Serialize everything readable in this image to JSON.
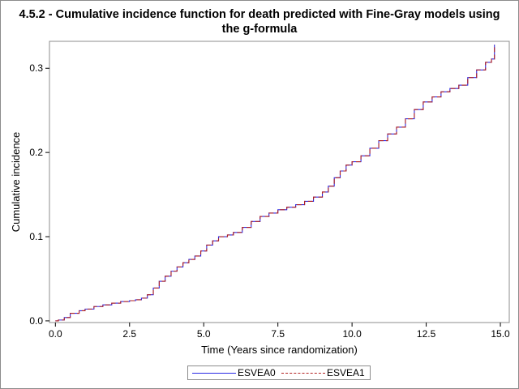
{
  "title_line1": "4.5.2 - Cumulative incidence function for death predicted with Fine-Gray models using",
  "title_line2": "the g-formula",
  "chart_data": {
    "type": "line",
    "title": "4.5.2 - Cumulative incidence function for death predicted with Fine-Gray models using the g-formula",
    "xlabel": "Time (Years since randomization)",
    "ylabel": "Cumulative incidence",
    "xlim": [
      0,
      15
    ],
    "ylim": [
      0,
      0.32
    ],
    "xticks": [
      0,
      2.5,
      5,
      7.5,
      10,
      12.5,
      15
    ],
    "xtick_labels": [
      "0.0",
      "2.5",
      "5.0",
      "7.5",
      "10.0",
      "12.5",
      "15.0"
    ],
    "yticks": [
      0,
      0.1,
      0.2,
      0.3
    ],
    "ytick_labels": [
      "0.0",
      "0.1",
      "0.2",
      "0.3"
    ],
    "grid": false,
    "legend_position": "bottom",
    "step": true,
    "x": [
      0,
      0.1,
      0.3,
      0.5,
      0.8,
      1.0,
      1.3,
      1.6,
      1.9,
      2.2,
      2.5,
      2.7,
      2.9,
      3.1,
      3.3,
      3.5,
      3.7,
      3.9,
      4.1,
      4.3,
      4.5,
      4.7,
      4.9,
      5.1,
      5.3,
      5.5,
      5.8,
      6.0,
      6.3,
      6.6,
      6.9,
      7.2,
      7.5,
      7.8,
      8.1,
      8.4,
      8.7,
      9.0,
      9.2,
      9.4,
      9.6,
      9.8,
      10.0,
      10.3,
      10.6,
      10.9,
      11.2,
      11.5,
      11.8,
      12.1,
      12.4,
      12.7,
      13.0,
      13.3,
      13.6,
      13.9,
      14.2,
      14.5,
      14.7,
      14.8
    ],
    "series": [
      {
        "name": "ESVEA0",
        "color": "#2a2ae6",
        "dash": "solid",
        "values": [
          0,
          0.001,
          0.004,
          0.009,
          0.012,
          0.014,
          0.017,
          0.019,
          0.021,
          0.023,
          0.024,
          0.025,
          0.027,
          0.031,
          0.039,
          0.047,
          0.053,
          0.059,
          0.064,
          0.069,
          0.073,
          0.077,
          0.083,
          0.09,
          0.095,
          0.1,
          0.102,
          0.105,
          0.111,
          0.118,
          0.124,
          0.128,
          0.132,
          0.135,
          0.138,
          0.142,
          0.147,
          0.153,
          0.16,
          0.17,
          0.178,
          0.185,
          0.189,
          0.196,
          0.205,
          0.214,
          0.222,
          0.23,
          0.24,
          0.251,
          0.26,
          0.266,
          0.272,
          0.276,
          0.28,
          0.289,
          0.298,
          0.307,
          0.311,
          0.328
        ]
      },
      {
        "name": "ESVEA1",
        "color": "#b22222",
        "dash": "dashed",
        "values": [
          0,
          0.001,
          0.004,
          0.009,
          0.012,
          0.014,
          0.017,
          0.019,
          0.021,
          0.023,
          0.024,
          0.025,
          0.027,
          0.031,
          0.039,
          0.047,
          0.053,
          0.059,
          0.064,
          0.069,
          0.073,
          0.077,
          0.083,
          0.09,
          0.095,
          0.1,
          0.102,
          0.105,
          0.111,
          0.118,
          0.124,
          0.128,
          0.132,
          0.135,
          0.138,
          0.142,
          0.147,
          0.153,
          0.16,
          0.17,
          0.178,
          0.185,
          0.189,
          0.196,
          0.205,
          0.214,
          0.222,
          0.23,
          0.24,
          0.251,
          0.26,
          0.266,
          0.272,
          0.276,
          0.28,
          0.289,
          0.298,
          0.307,
          0.311,
          0.328
        ]
      }
    ]
  },
  "legend": {
    "items": [
      {
        "label": "ESVEA0",
        "color": "#2a2ae6"
      },
      {
        "label": "ESVEA1",
        "color": "#b22222"
      }
    ]
  }
}
